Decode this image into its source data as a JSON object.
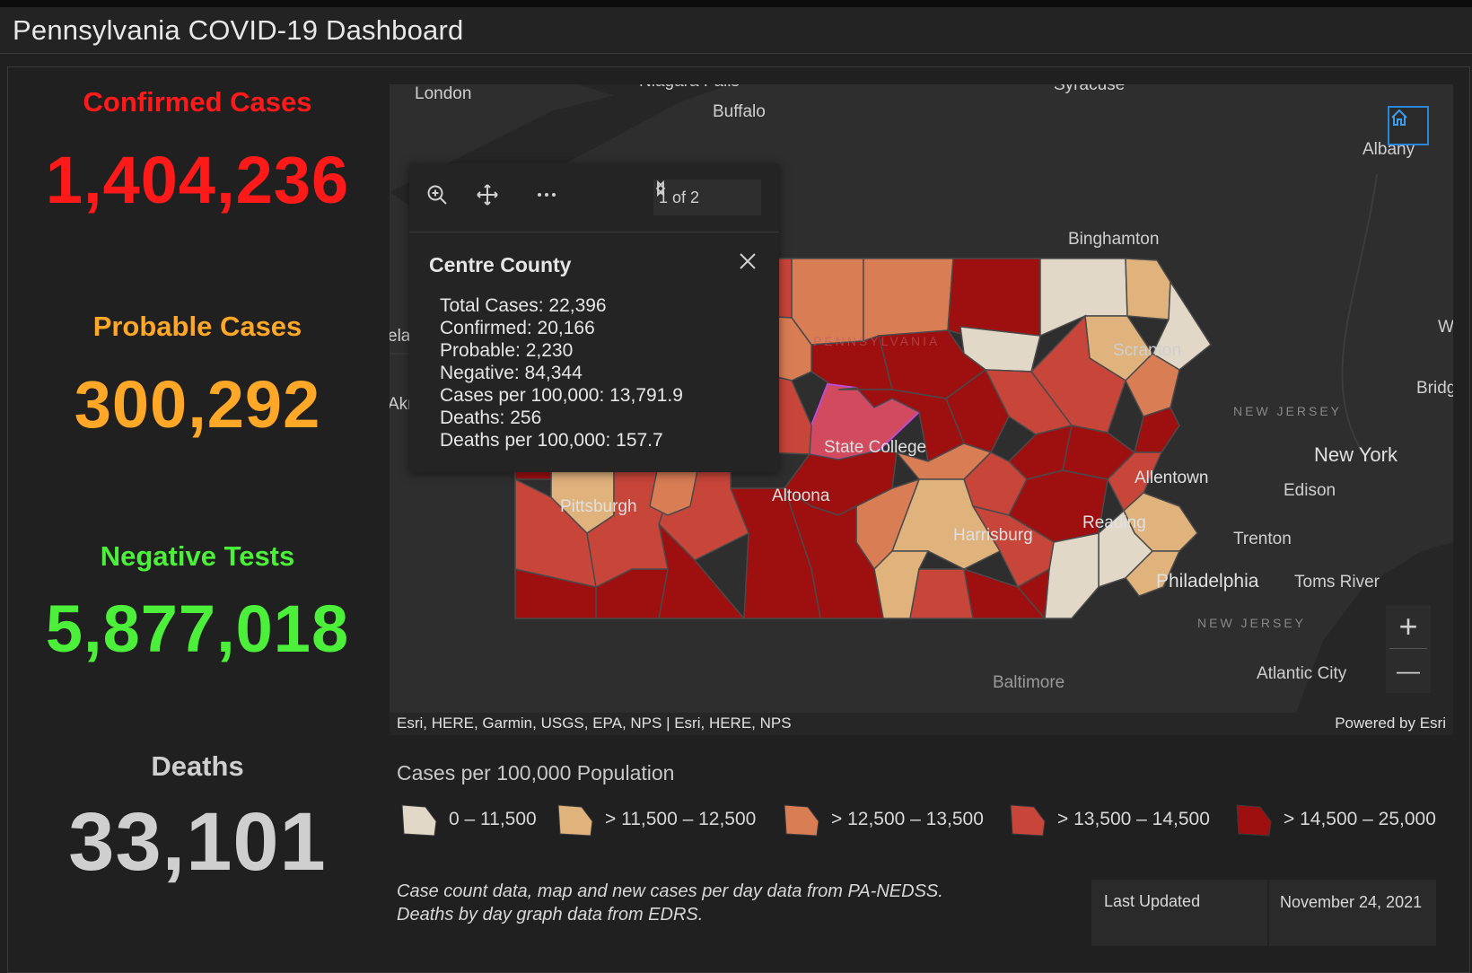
{
  "header": {
    "title": "Pennsylvania COVID-19 Dashboard"
  },
  "stats": [
    {
      "label": "Confirmed Cases",
      "value": "1,404,236",
      "color": "#ff1a1a"
    },
    {
      "label": "Probable Cases",
      "value": "300,292",
      "color": "#ffa726"
    },
    {
      "label": "Negative Tests",
      "value": "5,877,018",
      "color": "#4cf03a"
    },
    {
      "label": "Deaths",
      "value": "33,101",
      "color": "#cfcfcf"
    }
  ],
  "map": {
    "place_labels": [
      "London",
      "Niagara Falls",
      "Buffalo",
      "Syracuse",
      "Albany",
      "Binghamton",
      "Scranton",
      "State College",
      "Altoona",
      "Pittsburgh",
      "Harrisburg",
      "Reading",
      "Allentown",
      "New York",
      "Edison",
      "Trenton",
      "Philadelphia",
      "Toms River",
      "Atlantic City",
      "Baltimore",
      "NEW JERSEY",
      "NEW JERSEY",
      "Bridg",
      "W",
      "Akr",
      "elan",
      "PENNSYLVANIA"
    ],
    "attribution_left": "Esri, HERE, Garmin, USGS, EPA, NPS | Esri, HERE, NPS",
    "attribution_right": "Powered by Esri",
    "home_icon": "home-icon",
    "zoom_in_label": "+",
    "zoom_out_label": "—"
  },
  "popup": {
    "pager": "1 of 2",
    "title": "Centre County",
    "rows": [
      "Total Cases: 22,396",
      "Confirmed: 20,166",
      "Probable: 2,230",
      "Negative: 84,344",
      "Cases per 100,000: 13,791.9",
      "Deaths: 256",
      "Deaths per 100,000: 157.7"
    ],
    "tools": [
      "zoom-to-icon",
      "pan-icon",
      "more-icon"
    ]
  },
  "legend": {
    "title": "Cases per 100,000 Population",
    "items": [
      {
        "label": "0 – 11,500",
        "color": "#e2d8c8"
      },
      {
        "label": "> 11,500 – 12,500",
        "color": "#e0b27c"
      },
      {
        "label": "> 12,500 – 13,500",
        "color": "#d97d55"
      },
      {
        "label": "> 13,500 – 14,500",
        "color": "#c8453a"
      },
      {
        "label": "> 14,500 – 25,000",
        "color": "#9e0f10"
      }
    ]
  },
  "note": {
    "line1": "Case count data, map and new cases per day data from PA-NEDSS.",
    "line2": "Deaths by day graph data from EDRS."
  },
  "updated": {
    "label": "Last Updated",
    "value": "November 24, 2021"
  }
}
